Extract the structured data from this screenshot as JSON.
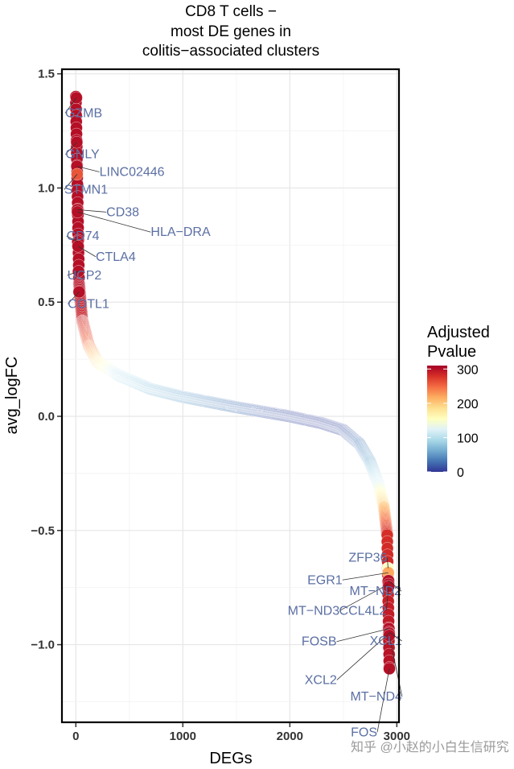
{
  "chart_data": {
    "type": "scatter",
    "title": [
      "CD8 T cells −",
      "most DE genes in",
      "colitis−associated clusters"
    ],
    "xlabel": "DEGs",
    "ylabel": "avg_logFC",
    "xlim": [
      -130,
      3020
    ],
    "ylim": [
      -1.34,
      1.52
    ],
    "x_ticks": [
      0,
      1000,
      2000,
      3000
    ],
    "x_tick_labels": [
      "0",
      "1000",
      "2000",
      "3000"
    ],
    "y_ticks": [
      1.5,
      1.0,
      0.5,
      0.0,
      -0.5,
      -1.0
    ],
    "y_tick_labels": [
      "1.5",
      "1.0",
      "0.5",
      "0.0",
      "−0.5",
      "−1.0"
    ],
    "grid": true,
    "n_points": 2930,
    "legend": {
      "title": [
        "Adjusted",
        "Pvalue"
      ],
      "position": "right",
      "range": [
        0,
        310
      ],
      "ticks": [
        0,
        100,
        200,
        300
      ],
      "tick_labels": [
        "0",
        "100",
        "200",
        "300"
      ],
      "colorscale": [
        "#313695",
        "#4575b4",
        "#74add1",
        "#abd9e9",
        "#e0f3f8",
        "#ffffbf",
        "#fee090",
        "#fdae61",
        "#f46d43",
        "#d73027",
        "#a50026"
      ]
    },
    "labeled_points": [
      {
        "gene": "GZMB",
        "x": 5,
        "y": 1.395,
        "padj": 300
      },
      {
        "gene": "GNLY",
        "x": 8,
        "y": 1.2,
        "padj": 300
      },
      {
        "gene": "LINC02446",
        "x": 10,
        "y": 1.095,
        "padj": 300
      },
      {
        "gene": "STMN1",
        "x": 12,
        "y": 1.06,
        "padj": 260
      },
      {
        "gene": "CD38",
        "x": 14,
        "y": 0.905,
        "padj": 300
      },
      {
        "gene": "HLA−DRA",
        "x": 16,
        "y": 0.895,
        "padj": 300
      },
      {
        "gene": "CD74",
        "x": 18,
        "y": 0.765,
        "padj": 300
      },
      {
        "gene": "CTLA4",
        "x": 20,
        "y": 0.745,
        "padj": 300
      },
      {
        "gene": "UCP2",
        "x": 25,
        "y": 0.635,
        "padj": 300
      },
      {
        "gene": "COTL1",
        "x": 30,
        "y": 0.545,
        "padj": 300
      },
      {
        "gene": "ZFP36",
        "x": 2918,
        "y": -0.665,
        "padj": 150
      },
      {
        "gene": "EGR1",
        "x": 2920,
        "y": -0.685,
        "padj": 220
      },
      {
        "gene": "MT−ND2",
        "x": 2922,
        "y": -0.72,
        "padj": 300
      },
      {
        "gene": "MT−ND3",
        "x": 2923,
        "y": -0.735,
        "padj": 300
      },
      {
        "gene": "CCL4L2",
        "x": 2924,
        "y": -0.745,
        "padj": 300
      },
      {
        "gene": "FOSB",
        "x": 2926,
        "y": -0.93,
        "padj": 300
      },
      {
        "gene": "XCL1",
        "x": 2927,
        "y": -0.945,
        "padj": 300
      },
      {
        "gene": "XCL2",
        "x": 2928,
        "y": -0.95,
        "padj": 300
      },
      {
        "gene": "MT−ND4",
        "x": 2929,
        "y": -0.96,
        "padj": 300
      },
      {
        "gene": "FOS",
        "x": 2930,
        "y": -1.105,
        "padj": 300
      }
    ],
    "curve_anchors": [
      {
        "x": 0,
        "y": 1.4,
        "padj": 300
      },
      {
        "x": 30,
        "y": 0.58,
        "padj": 300
      },
      {
        "x": 60,
        "y": 0.42,
        "padj": 290
      },
      {
        "x": 120,
        "y": 0.31,
        "padj": 250
      },
      {
        "x": 200,
        "y": 0.24,
        "padj": 190
      },
      {
        "x": 400,
        "y": 0.18,
        "padj": 110
      },
      {
        "x": 700,
        "y": 0.12,
        "padj": 80
      },
      {
        "x": 1000,
        "y": 0.085,
        "padj": 60
      },
      {
        "x": 1500,
        "y": 0.04,
        "padj": 30
      },
      {
        "x": 2000,
        "y": 0.0,
        "padj": 10
      },
      {
        "x": 2300,
        "y": -0.03,
        "padj": 5
      },
      {
        "x": 2500,
        "y": -0.06,
        "padj": 10
      },
      {
        "x": 2650,
        "y": -0.12,
        "padj": 30
      },
      {
        "x": 2750,
        "y": -0.2,
        "padj": 60
      },
      {
        "x": 2830,
        "y": -0.3,
        "padj": 120
      },
      {
        "x": 2880,
        "y": -0.4,
        "padj": 200
      },
      {
        "x": 2910,
        "y": -0.52,
        "padj": 280
      },
      {
        "x": 2930,
        "y": -1.1,
        "padj": 300
      }
    ]
  },
  "watermark": "知乎 @小赵的小白生信研究"
}
